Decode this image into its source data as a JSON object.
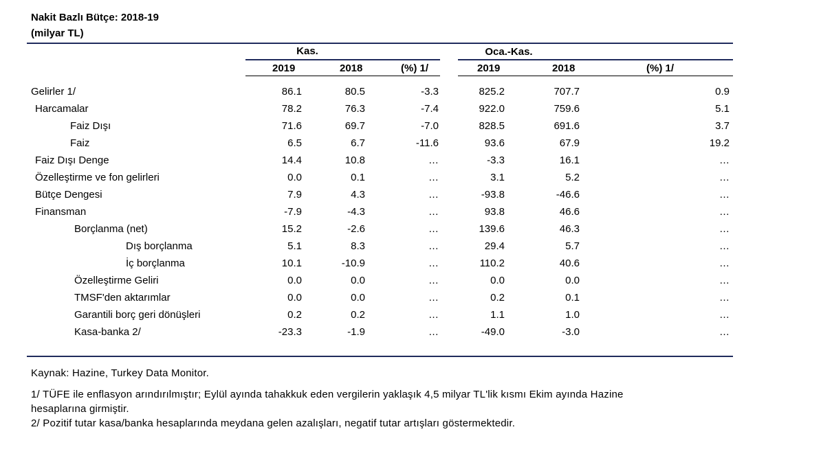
{
  "title": "Nakit Bazlı Bütçe: 2018-19",
  "subtitle": "(milyar TL)",
  "groups": {
    "kas": "Kas.",
    "oca_kas": "Oca.-Kas."
  },
  "columns": [
    "2019",
    "2018",
    "(%) 1/",
    "2019",
    "2018",
    "(%) 1/"
  ],
  "rows": [
    {
      "label": "Gelirler 1/",
      "values": [
        "86.1",
        "80.5",
        "-3.3",
        "825.2",
        "707.7",
        "0.9"
      ]
    },
    {
      "label": "Harcamalar",
      "values": [
        "78.2",
        "76.3",
        "-7.4",
        "922.0",
        "759.6",
        "5.1"
      ]
    },
    {
      "label": "Faiz Dışı",
      "values": [
        "71.6",
        "69.7",
        "-7.0",
        "828.5",
        "691.6",
        "3.7"
      ]
    },
    {
      "label": "Faiz",
      "values": [
        "6.5",
        "6.7",
        "-11.6",
        "93.6",
        "67.9",
        "19.2"
      ]
    },
    {
      "label": "Faiz Dışı Denge",
      "values": [
        "14.4",
        "10.8",
        "…",
        "-3.3",
        "16.1",
        "…"
      ]
    },
    {
      "label": "Özelleştirme ve fon gelirleri",
      "values": [
        "0.0",
        "0.1",
        "…",
        "3.1",
        "5.2",
        "…"
      ]
    },
    {
      "label": "Bütçe Dengesi",
      "values": [
        "7.9",
        "4.3",
        "…",
        "-93.8",
        "-46.6",
        "…"
      ]
    },
    {
      "label": "Finansman",
      "values": [
        "-7.9",
        "-4.3",
        "…",
        "93.8",
        "46.6",
        "…"
      ]
    },
    {
      "label": "Borçlanma (net)",
      "values": [
        "15.2",
        "-2.6",
        "…",
        "139.6",
        "46.3",
        "…"
      ]
    },
    {
      "label": "Dış borçlanma",
      "values": [
        "5.1",
        "8.3",
        "…",
        "29.4",
        "5.7",
        "…"
      ]
    },
    {
      "label": "İç borçlanma",
      "values": [
        "10.1",
        "-10.9",
        "…",
        "110.2",
        "40.6",
        "…"
      ]
    },
    {
      "label": "Özelleştirme Geliri",
      "values": [
        "0.0",
        "0.0",
        "…",
        "0.0",
        "0.0",
        "…"
      ]
    },
    {
      "label": "TMSF'den aktarımlar",
      "values": [
        "0.0",
        "0.0",
        "…",
        "0.2",
        "0.1",
        "…"
      ]
    },
    {
      "label": "Garantili borç geri dönüşleri",
      "values": [
        "0.2",
        "0.2",
        "…",
        "1.1",
        "1.0",
        "…"
      ]
    },
    {
      "label": "Kasa-banka 2/",
      "values": [
        "-23.3",
        "-1.9",
        "…",
        "-49.0",
        "-3.0",
        "…"
      ]
    }
  ],
  "notes": {
    "source": "Kaynak: Hazine, Turkey Data Monitor.",
    "note1_line1": "1/ TÜFE ile enflasyon arındırılmıştır; Eylül ayında tahakkuk eden vergilerin yaklaşık 4,5 milyar TL'lik kısmı Ekim ayında Hazine",
    "note1_line2": "hesaplarına girmiştir.",
    "note2": "2/ Pozitif tutar kasa/banka hesaplarında meydana gelen azalışları, negatif tutar artışları göstermektedir."
  }
}
